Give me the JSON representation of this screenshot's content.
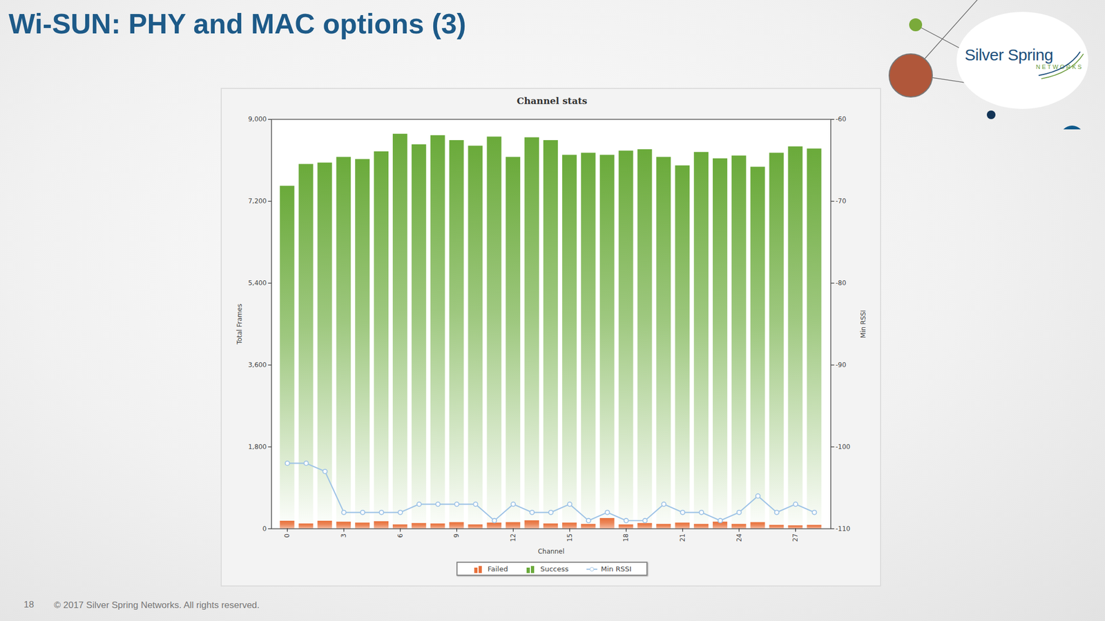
{
  "slide": {
    "title": "Wi-SUN: PHY and MAC options (3)",
    "page_number": 18,
    "copyright": "© 2017 Silver Spring Networks.  All rights reserved.",
    "logo_text": "Silver Spring",
    "logo_subtext": "NETWORKS"
  },
  "chart_data": {
    "type": "bar",
    "title": "Channel stats",
    "x_label": "Channel",
    "y_label": "Total Frames",
    "y2_label": "Min RSSI",
    "categories": [
      0,
      1,
      2,
      3,
      4,
      5,
      6,
      7,
      8,
      9,
      10,
      11,
      12,
      13,
      14,
      15,
      16,
      17,
      18,
      19,
      20,
      21,
      22,
      23,
      24,
      25,
      26,
      27,
      28
    ],
    "series": [
      {
        "name": "Failed",
        "color": "#e8703a",
        "type": "bar",
        "values": [
          170,
          110,
          170,
          150,
          130,
          160,
          90,
          120,
          110,
          140,
          90,
          130,
          140,
          180,
          110,
          130,
          100,
          230,
          90,
          120,
          100,
          130,
          100,
          150,
          100,
          140,
          80,
          70,
          80
        ]
      },
      {
        "name": "Success",
        "color": "#6aaa3a",
        "type": "bar",
        "values": [
          7364,
          7903,
          7874,
          8018,
          7991,
          8131,
          8587,
          8326,
          8536,
          8398,
          8325,
          8485,
          8028,
          8420,
          8428,
          8084,
          8160,
          7984,
          8217,
          8218,
          8068,
          7852,
          8176,
          7987,
          8099,
          7812,
          8180,
          8330,
          8273
        ]
      },
      {
        "name": "Min RSSI",
        "color": "#9ec3e6",
        "type": "line",
        "marker": "circle",
        "axis": "y2",
        "values": [
          -102,
          -102,
          -103,
          -108,
          -108,
          -108,
          -108,
          -107,
          -107,
          -107,
          -107,
          -109,
          -107,
          -108,
          -108,
          -107,
          -109,
          -108,
          -109,
          -109,
          -107,
          -108,
          -108,
          -109,
          -108,
          -106,
          -108,
          -107,
          -108
        ]
      }
    ],
    "stacked": true,
    "ylim": [
      0,
      9000
    ],
    "yticks": [
      0,
      {
        "value": 1800,
        "label": "1,800"
      },
      {
        "value": 3600,
        "label": "3,600"
      },
      {
        "value": 5400,
        "label": "5,400"
      },
      {
        "value": 7200,
        "label": "7,200"
      },
      {
        "value": 9000,
        "label": "9,000"
      }
    ],
    "y2lim": [
      -110,
      -60
    ],
    "y2ticks": [
      -110,
      -100,
      -90,
      -80,
      -70,
      -60
    ],
    "xticks": [
      0,
      3,
      6,
      9,
      12,
      15,
      18,
      21,
      24,
      27
    ],
    "grid": false,
    "legend": "bottom"
  }
}
